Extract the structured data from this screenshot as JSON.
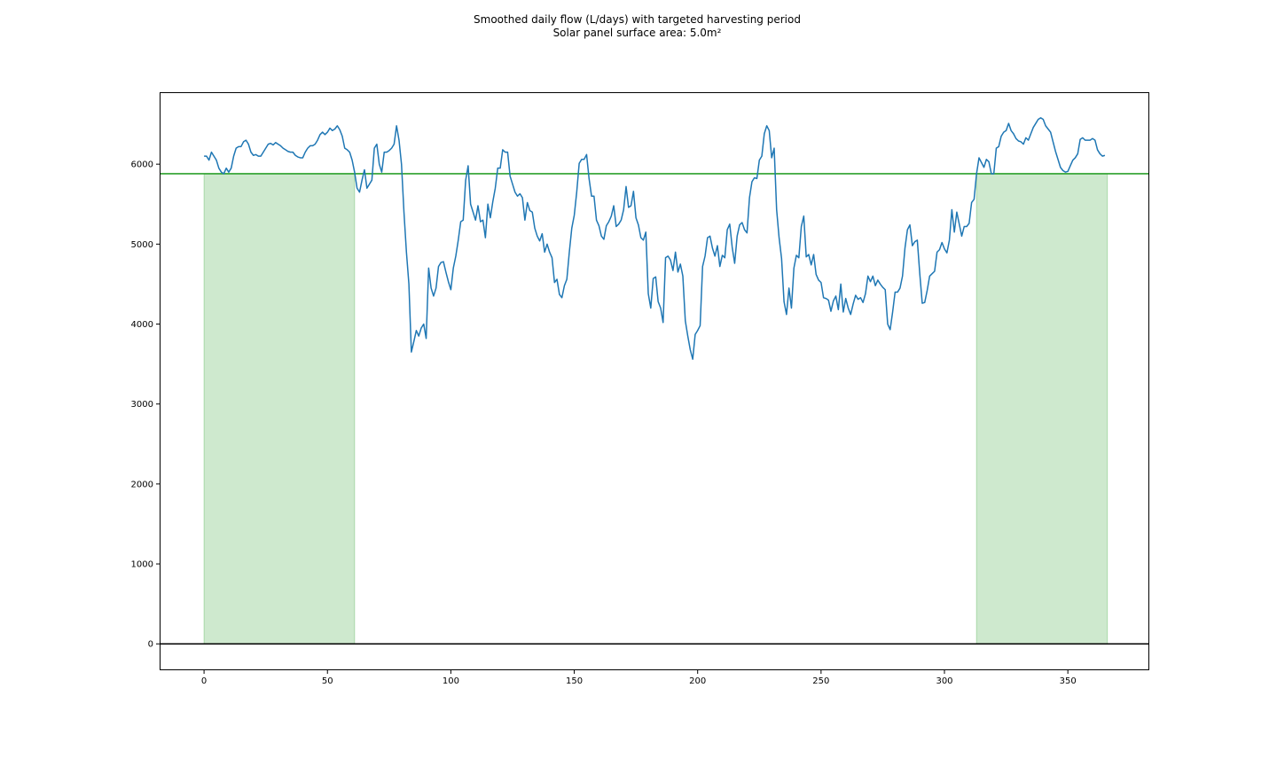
{
  "chart_data": {
    "type": "line",
    "title": "Smoothed daily flow (L/days) with targeted harvesting period",
    "subtitle": "Solar panel surface area: 5.0m²",
    "xlabel": "",
    "ylabel": "",
    "xlim": [
      -18,
      383
    ],
    "ylim": [
      -330,
      6900
    ],
    "x_ticks": [
      0,
      50,
      100,
      150,
      200,
      250,
      300,
      350
    ],
    "y_ticks": [
      0,
      1000,
      2000,
      3000,
      4000,
      5000,
      6000
    ],
    "grid": false,
    "legend": "none",
    "threshold": 5880,
    "shaded_periods": [
      [
        0,
        61
      ],
      [
        313,
        366
      ]
    ],
    "colors": {
      "flow": "#1f77b4",
      "threshold": "#2ca02c",
      "shade": "#2ca02c",
      "baseline": "#000000"
    },
    "series": [
      {
        "x": [
          0,
          1,
          2,
          3,
          4,
          5,
          6,
          7,
          8,
          9,
          10,
          11,
          12,
          13,
          14,
          15,
          16,
          17,
          18,
          19,
          20,
          21,
          22,
          23,
          24,
          25,
          26,
          27,
          28,
          29,
          30,
          31,
          32,
          33,
          34,
          35,
          36,
          37,
          38,
          39,
          40,
          41,
          42,
          43,
          44,
          45,
          46,
          47,
          48,
          49,
          50,
          51,
          52,
          53,
          54,
          55,
          56,
          57,
          58,
          59,
          60,
          61,
          62,
          63,
          64,
          65,
          66,
          67,
          68,
          69,
          70,
          71,
          72,
          73,
          74,
          75,
          76,
          77,
          78,
          79,
          80,
          81,
          82,
          83,
          84,
          85,
          86,
          87,
          88,
          89,
          90,
          91,
          92,
          93,
          94,
          95,
          96,
          97,
          98,
          99,
          100,
          101,
          102,
          103,
          104,
          105,
          106,
          107,
          108,
          109,
          110,
          111,
          112,
          113,
          114,
          115,
          116,
          117,
          118,
          119,
          120,
          121,
          122,
          123,
          124,
          125,
          126,
          127,
          128,
          129,
          130,
          131,
          132,
          133,
          134,
          135,
          136,
          137,
          138,
          139,
          140,
          141,
          142,
          143,
          144,
          145,
          146,
          147,
          148,
          149,
          150,
          151,
          152,
          153,
          154,
          155,
          156,
          157,
          158,
          159,
          160,
          161,
          162,
          163,
          164,
          165,
          166,
          167,
          168,
          169,
          170,
          171,
          172,
          173,
          174,
          175,
          176,
          177,
          178,
          179,
          180,
          181,
          182,
          183,
          184,
          185,
          186,
          187,
          188,
          189,
          190,
          191,
          192,
          193,
          194,
          195,
          196,
          197,
          198,
          199,
          200,
          201,
          202,
          203,
          204,
          205,
          206,
          207,
          208,
          209,
          210,
          211,
          212,
          213,
          214,
          215,
          216,
          217,
          218,
          219,
          220,
          221,
          222,
          223,
          224,
          225,
          226,
          227,
          228,
          229,
          230,
          231,
          232,
          233,
          234,
          235,
          236,
          237,
          238,
          239,
          240,
          241,
          242,
          243,
          244,
          245,
          246,
          247,
          248,
          249,
          250,
          251,
          252,
          253,
          254,
          255,
          256,
          257,
          258,
          259,
          260,
          261,
          262,
          263,
          264,
          265,
          266,
          267,
          268,
          269,
          270,
          271,
          272,
          273,
          274,
          275,
          276,
          277,
          278,
          279,
          280,
          281,
          282,
          283,
          284,
          285,
          286,
          287,
          288,
          289,
          290,
          291,
          292,
          293,
          294,
          295,
          296,
          297,
          298,
          299,
          300,
          301,
          302,
          303,
          304,
          305,
          306,
          307,
          308,
          309,
          310,
          311,
          312,
          313,
          314,
          315,
          316,
          317,
          318,
          319,
          320,
          321,
          322,
          323,
          324,
          325,
          326,
          327,
          328,
          329,
          330,
          331,
          332,
          333,
          334,
          335,
          336,
          337,
          338,
          339,
          340,
          341,
          342,
          343,
          344,
          345,
          346,
          347,
          348,
          349,
          350,
          351,
          352,
          353,
          354,
          355,
          356,
          357,
          358,
          359,
          360,
          361,
          362,
          363,
          364,
          365
        ],
        "values": [
          6100,
          6100,
          6050,
          6150,
          6100,
          6050,
          5950,
          5900,
          5880,
          5950,
          5900,
          5950,
          6100,
          6200,
          6220,
          6220,
          6280,
          6300,
          6250,
          6150,
          6110,
          6120,
          6100,
          6100,
          6150,
          6200,
          6250,
          6260,
          6240,
          6270,
          6250,
          6230,
          6200,
          6180,
          6160,
          6150,
          6150,
          6110,
          6090,
          6080,
          6080,
          6150,
          6200,
          6230,
          6230,
          6250,
          6300,
          6370,
          6400,
          6370,
          6400,
          6450,
          6420,
          6440,
          6480,
          6430,
          6350,
          6200,
          6180,
          6150,
          6050,
          5900,
          5700,
          5650,
          5800,
          5930,
          5700,
          5750,
          5800,
          6200,
          6250,
          6000,
          5900,
          6150,
          6150,
          6170,
          6200,
          6250,
          6480,
          6300,
          6000,
          5400,
          4900,
          4500,
          3650,
          3780,
          3920,
          3850,
          3950,
          4000,
          3820,
          4700,
          4450,
          4350,
          4450,
          4720,
          4770,
          4780,
          4650,
          4530,
          4430,
          4700,
          4850,
          5050,
          5280,
          5300,
          5800,
          5980,
          5500,
          5400,
          5300,
          5480,
          5280,
          5300,
          5080,
          5500,
          5330,
          5530,
          5700,
          5950,
          5950,
          6180,
          6150,
          6150,
          5850,
          5750,
          5650,
          5600,
          5630,
          5580,
          5300,
          5520,
          5420,
          5400,
          5200,
          5100,
          5040,
          5130,
          4900,
          5000,
          4900,
          4830,
          4520,
          4560,
          4370,
          4330,
          4480,
          4560,
          4900,
          5200,
          5360,
          5650,
          6010,
          6060,
          6060,
          6120,
          5820,
          5600,
          5600,
          5300,
          5230,
          5100,
          5060,
          5230,
          5280,
          5350,
          5480,
          5220,
          5250,
          5300,
          5430,
          5720,
          5460,
          5480,
          5660,
          5330,
          5240,
          5080,
          5050,
          5150,
          4380,
          4200,
          4570,
          4590,
          4280,
          4200,
          4020,
          4830,
          4850,
          4800,
          4670,
          4900,
          4650,
          4750,
          4600,
          4040,
          3850,
          3680,
          3560,
          3870,
          3920,
          3980,
          4720,
          4850,
          5080,
          5100,
          4950,
          4850,
          4980,
          4720,
          4860,
          4830,
          5180,
          5250,
          4960,
          4760,
          5100,
          5240,
          5270,
          5180,
          5140,
          5580,
          5780,
          5830,
          5820,
          6050,
          6100,
          6380,
          6480,
          6420,
          6080,
          6200,
          5430,
          5080,
          4820,
          4280,
          4120,
          4450,
          4200,
          4700,
          4860,
          4830,
          5220,
          5350,
          4840,
          4870,
          4740,
          4870,
          4620,
          4550,
          4520,
          4330,
          4320,
          4300,
          4160,
          4290,
          4350,
          4180,
          4500,
          4150,
          4320,
          4200,
          4120,
          4250,
          4360,
          4310,
          4330,
          4270,
          4380,
          4600,
          4530,
          4600,
          4480,
          4550,
          4500,
          4460,
          4430,
          4000,
          3930,
          4150,
          4400,
          4400,
          4450,
          4600,
          4950,
          5180,
          5240,
          4980,
          5030,
          5050,
          4630,
          4260,
          4270,
          4420,
          4600,
          4630,
          4660,
          4900,
          4930,
          5020,
          4940,
          4890,
          5050,
          5430,
          5150,
          5400,
          5250,
          5100,
          5220,
          5220,
          5260,
          5520,
          5560,
          5880,
          6080,
          6020,
          5960,
          6060,
          6030,
          5880,
          5880,
          6200,
          6220,
          6350,
          6400,
          6420,
          6510,
          6420,
          6380,
          6320,
          6290,
          6280,
          6250,
          6330,
          6300,
          6380,
          6460,
          6510,
          6560,
          6580,
          6560,
          6480,
          6440,
          6400,
          6280,
          6160,
          6060,
          5960,
          5920,
          5900,
          5910,
          5980,
          6050,
          6080,
          6130,
          6310,
          6330,
          6300,
          6300,
          6300,
          6320,
          6300,
          6180,
          6130,
          6100,
          6110
        ]
      }
    ]
  }
}
